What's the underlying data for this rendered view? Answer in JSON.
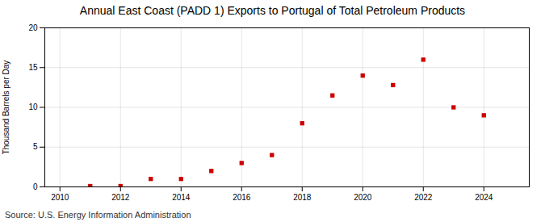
{
  "chart_data": {
    "type": "scatter",
    "title": "Annual East Coast (PADD 1) Exports to Portugal of Total Petroleum Products",
    "ylabel": "Thousand Barrels per Day",
    "source": "Source: U.S. Energy Information Administration",
    "x": [
      2011,
      2012,
      2013,
      2014,
      2015,
      2016,
      2017,
      2018,
      2019,
      2020,
      2021,
      2022,
      2023,
      2024
    ],
    "values": [
      0.1,
      0.1,
      1.0,
      1.0,
      2.0,
      3.0,
      4.0,
      8.0,
      11.5,
      14.0,
      12.8,
      16.0,
      10.0,
      9.0
    ],
    "color": "#cc0000",
    "marker": "square",
    "xlim": [
      2009.5,
      2025.5
    ],
    "ylim": [
      0,
      20
    ],
    "xticks": [
      2010,
      2012,
      2014,
      2016,
      2018,
      2020,
      2022,
      2024
    ],
    "yticks": [
      0,
      5,
      10,
      15,
      20
    ],
    "grid": true
  }
}
